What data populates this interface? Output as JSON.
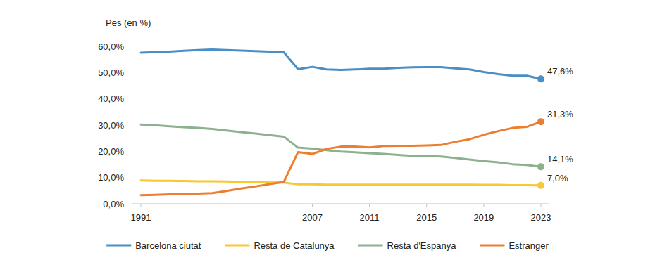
{
  "chart_data": {
    "type": "line",
    "y_label": "Pes (en %)",
    "categories": [
      "1991",
      null,
      null,
      null,
      null,
      null,
      null,
      null,
      null,
      null,
      null,
      null,
      "2007",
      null,
      null,
      null,
      "2011",
      null,
      null,
      null,
      "2015",
      null,
      null,
      null,
      "2019",
      null,
      null,
      null,
      "2023"
    ],
    "series": [
      {
        "name": "Barcelona ciutat",
        "color": "#4a8ec6",
        "values": [
          57.6,
          57.8,
          58.0,
          58.3,
          58.6,
          58.8,
          58.6,
          58.4,
          58.2,
          58.0,
          57.8,
          51.3,
          52.2,
          51.2,
          51.0,
          51.2,
          51.5,
          51.5,
          51.8,
          52.0,
          52.1,
          52.1,
          51.6,
          51.2,
          50.2,
          49.4,
          48.8,
          48.8,
          47.6
        ],
        "value_labels": [
          null,
          null,
          null,
          null,
          null,
          null,
          null,
          null,
          null,
          null,
          null,
          null,
          null,
          null,
          null,
          null,
          null,
          null,
          null,
          null,
          null,
          null,
          null,
          null,
          null,
          null,
          null,
          null,
          "47,6%"
        ]
      },
      {
        "name": "Resta de Catalunya",
        "color": "#f9c72f",
        "values": [
          8.9,
          8.8,
          8.8,
          8.7,
          8.6,
          8.6,
          8.5,
          8.4,
          8.3,
          8.2,
          8.1,
          7.4,
          7.4,
          7.3,
          7.3,
          7.3,
          7.3,
          7.3,
          7.3,
          7.3,
          7.3,
          7.3,
          7.3,
          7.3,
          7.2,
          7.2,
          7.1,
          7.1,
          7.0
        ],
        "value_labels": [
          null,
          null,
          null,
          null,
          null,
          null,
          null,
          null,
          null,
          null,
          null,
          null,
          null,
          null,
          null,
          null,
          null,
          null,
          null,
          null,
          null,
          null,
          null,
          null,
          null,
          null,
          null,
          null,
          "7,0%"
        ]
      },
      {
        "name": "Resta d'Espanya",
        "color": "#8fb08f",
        "values": [
          30.2,
          29.9,
          29.5,
          29.2,
          28.9,
          28.5,
          27.9,
          27.3,
          26.8,
          26.2,
          25.6,
          21.4,
          21.0,
          20.4,
          19.9,
          19.6,
          19.3,
          19.0,
          18.6,
          18.3,
          18.2,
          18.0,
          17.5,
          16.9,
          16.3,
          15.8,
          15.1,
          14.8,
          14.1
        ],
        "value_labels": [
          null,
          null,
          null,
          null,
          null,
          null,
          null,
          null,
          null,
          null,
          null,
          null,
          null,
          null,
          null,
          null,
          null,
          null,
          null,
          null,
          null,
          null,
          null,
          null,
          null,
          null,
          null,
          null,
          "14,1%"
        ]
      },
      {
        "name": "Estranger",
        "color": "#ed7d31",
        "values": [
          3.3,
          3.4,
          3.6,
          3.8,
          3.9,
          4.1,
          4.9,
          5.8,
          6.6,
          7.5,
          8.3,
          19.7,
          19.0,
          20.9,
          21.8,
          21.8,
          21.5,
          22.0,
          22.1,
          22.1,
          22.2,
          22.4,
          23.6,
          24.6,
          26.3,
          27.7,
          28.9,
          29.3,
          31.3
        ],
        "value_labels": [
          null,
          null,
          null,
          null,
          null,
          null,
          null,
          null,
          null,
          null,
          null,
          null,
          null,
          null,
          null,
          null,
          null,
          null,
          null,
          null,
          null,
          null,
          null,
          null,
          null,
          null,
          null,
          null,
          "31,3%"
        ]
      }
    ],
    "ylim": [
      0,
      60
    ],
    "yticks": [
      {
        "value": 0,
        "label": "0,0%"
      },
      {
        "value": 10,
        "label": "10,0%"
      },
      {
        "value": 20,
        "label": "20,0%"
      },
      {
        "value": 30,
        "label": "30,0%"
      },
      {
        "value": 40,
        "label": "40,0%"
      },
      {
        "value": 50,
        "label": "50,0%"
      },
      {
        "value": 60,
        "label": "60,0%"
      }
    ],
    "grid": false,
    "legend": "bottom"
  }
}
